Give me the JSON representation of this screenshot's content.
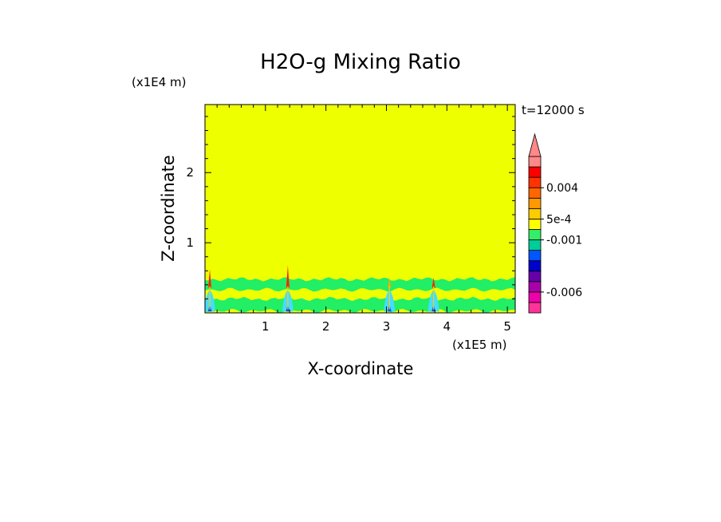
{
  "chart_data": {
    "type": "heatmap",
    "title": "H2O-g Mixing Ratio",
    "xlabel": "X-coordinate",
    "ylabel": "Z-coordinate",
    "x_unit": "(x1E5 m)",
    "y_unit": "(x1E4 m)",
    "time_label": "t=12000 s",
    "xlim": [
      0,
      5.13
    ],
    "ylim": [
      0,
      2.97
    ],
    "x_ticks": [
      "1",
      "2",
      "3",
      "4",
      "5"
    ],
    "x_tick_values": [
      1,
      2,
      3,
      4,
      5
    ],
    "y_ticks": [
      "1",
      "2"
    ],
    "y_tick_values": [
      1,
      2
    ],
    "background_color": "#eeff00",
    "bands": [
      {
        "name": "lower-green-band",
        "z_min": 0.03,
        "z_max": 0.2,
        "color": "#22ee66"
      },
      {
        "name": "upper-green-band",
        "z_min": 0.33,
        "z_max": 0.48,
        "color": "#22ee66"
      }
    ],
    "plumes": [
      {
        "x": 0.08,
        "z_top": 0.62,
        "color": "#ff2200"
      },
      {
        "x": 1.37,
        "z_top": 0.68,
        "color": "#ff2200"
      },
      {
        "x": 3.05,
        "z_top": 0.5,
        "color": "#ffaa00"
      },
      {
        "x": 3.78,
        "z_top": 0.5,
        "color": "#ff2200"
      }
    ],
    "colorbar": {
      "segments": [
        "#ff3399",
        "#ee00aa",
        "#aa00aa",
        "#6600aa",
        "#0000cc",
        "#0055ff",
        "#00cc99",
        "#33ee66",
        "#ffff00",
        "#ffcc00",
        "#ff9900",
        "#ff6600",
        "#ff3300",
        "#ff0000",
        "#ff8888"
      ],
      "labels": [
        {
          "text": "0.004",
          "segment_index": 12
        },
        {
          "text": "5e-4",
          "segment_index": 9
        },
        {
          "text": "-0.001",
          "segment_index": 7
        },
        {
          "text": "-0.006",
          "segment_index": 2
        }
      ],
      "arrow_color": "#ff8888"
    }
  }
}
